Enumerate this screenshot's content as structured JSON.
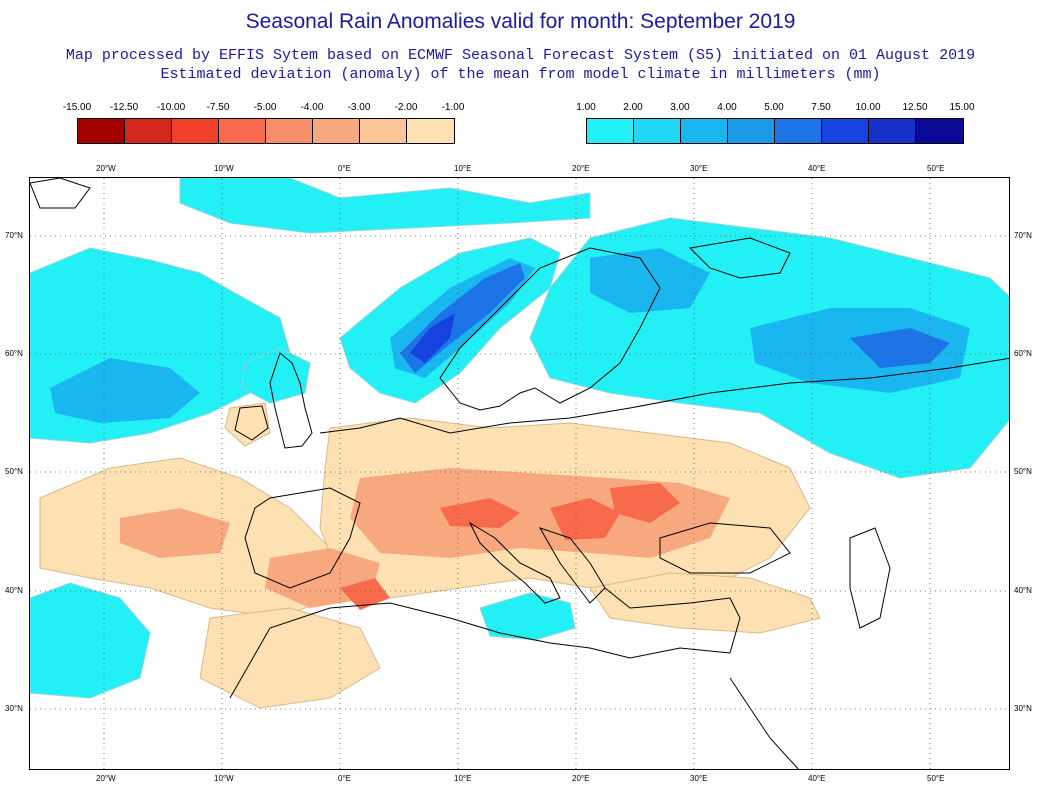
{
  "title": "Seasonal Rain Anomalies valid for month: September 2019",
  "subtitle_line1": "Map processed by EFFIS Sytem based on ECMWF Seasonal Forecast System (S5) initiated on 01 August 2019",
  "subtitle_line2": "Estimated deviation (anomaly) of the mean from model climate in millimeters (mm)",
  "colors": {
    "title_text": "#1a1aa6",
    "negative": [
      "#a50000",
      "#d3261c",
      "#f0402b",
      "#f86a4c",
      "#f88e6a",
      "#f8a87e",
      "#fac697",
      "#fde1b2"
    ],
    "positive": [
      "#22f0f5",
      "#22d7f5",
      "#1ab6f0",
      "#1b9ae8",
      "#1c74e6",
      "#1643e0",
      "#1630c8",
      "#0a0a96"
    ]
  },
  "legend_negative": {
    "labels": [
      "-15.00",
      "-12.50",
      "-10.00",
      "-7.50",
      "-5.00",
      "-4.00",
      "-3.00",
      "-2.00",
      "-1.00"
    ]
  },
  "legend_positive": {
    "labels": [
      "1.00",
      "2.00",
      "3.00",
      "4.00",
      "5.00",
      "7.50",
      "10.00",
      "12.50",
      "15.00"
    ]
  },
  "map": {
    "lon_labels": [
      "20°W",
      "10°W",
      "0°E",
      "10°E",
      "20°E",
      "30°E",
      "40°E",
      "50°E"
    ],
    "lat_labels": [
      "70°N",
      "60°N",
      "50°N",
      "40°N",
      "30°N"
    ]
  }
}
